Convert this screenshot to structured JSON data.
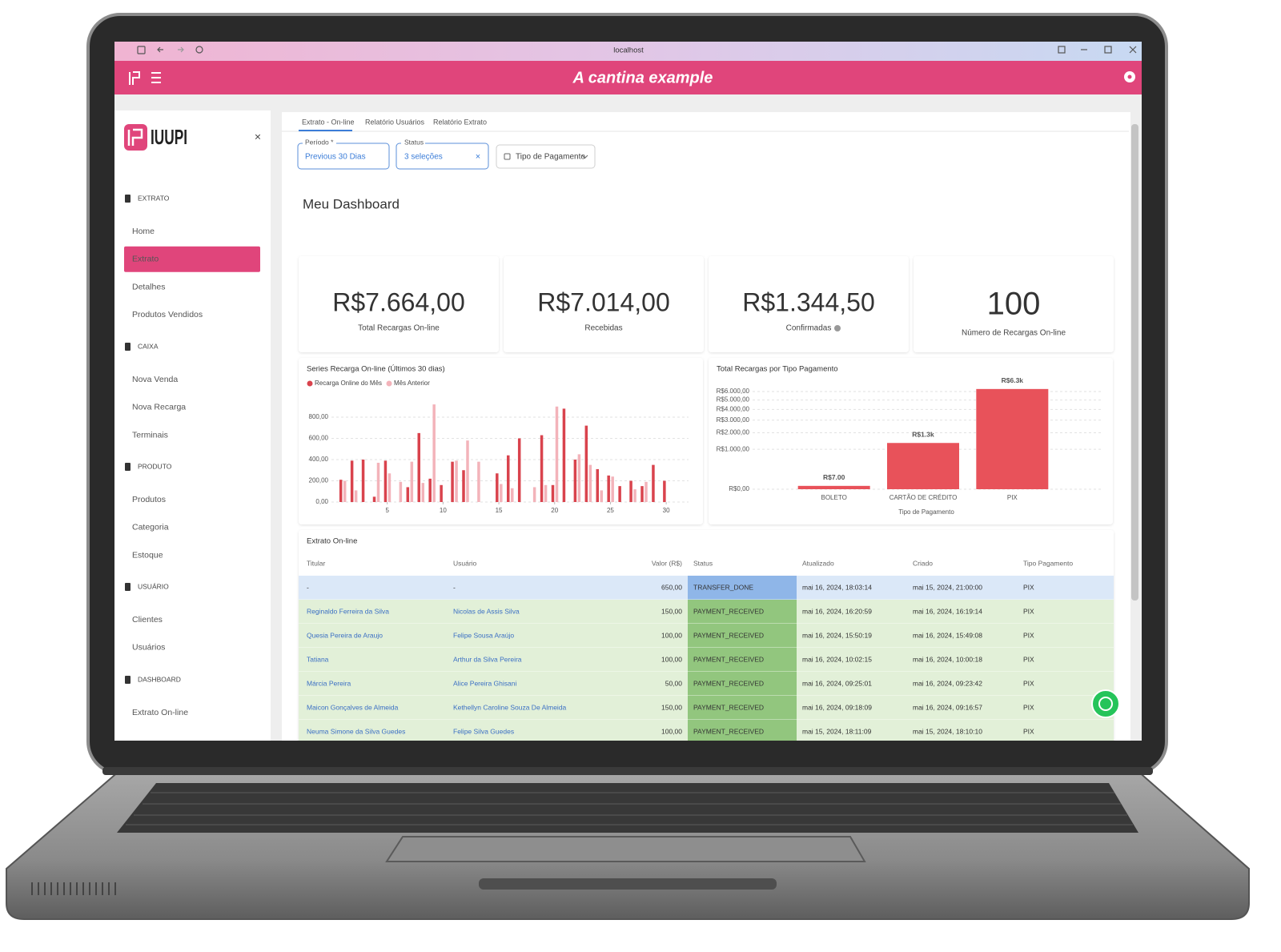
{
  "browser": {
    "address": "localhost"
  },
  "header": {
    "title": "A cantina example"
  },
  "sidebar": {
    "brand": "IUUPI",
    "close": "×",
    "sections": [
      {
        "title": "EXTRATO",
        "items": [
          "Home",
          "Extrato",
          "Detalhes",
          "Produtos Vendidos"
        ]
      },
      {
        "title": "CAIXA",
        "items": [
          "Nova Venda",
          "Nova Recarga",
          "Terminais"
        ]
      },
      {
        "title": "PRODUTO",
        "items": [
          "Produtos",
          "Categoria",
          "Estoque"
        ]
      },
      {
        "title": "USUÁRIO",
        "items": [
          "Clientes",
          "Usuários"
        ]
      },
      {
        "title": "DASHBOARD",
        "items": [
          "Extrato On-line"
        ]
      }
    ]
  },
  "tabs": [
    "Extrato - On-line",
    "Relatório Usuários",
    "Relatório Extrato"
  ],
  "filters": {
    "period_label": "Período *",
    "period_value": "Previous 30 Dias",
    "status_label": "Status",
    "status_value": "3 seleções",
    "status_clear": "×",
    "payment_type": "Tipo de Pagamento"
  },
  "dashboard_title": "Meu Dashboard",
  "cards": [
    {
      "value": "R$7.664,00",
      "label": "Total Recargas On-line"
    },
    {
      "value": "R$7.014,00",
      "label": "Recebidas"
    },
    {
      "value": "R$1.344,50",
      "label": "Confirmadas"
    },
    {
      "value": "100",
      "label": "Número de Recargas On-line"
    }
  ],
  "chart_data": [
    {
      "type": "bar",
      "title": "Series Recarga On-line (Últimos 30 dias)",
      "x": [
        1,
        2,
        3,
        4,
        5,
        6,
        7,
        8,
        9,
        10,
        11,
        12,
        13,
        14,
        15,
        16,
        17,
        18,
        19,
        20,
        21,
        22,
        23,
        24,
        25,
        26,
        27,
        28,
        29,
        30
      ],
      "xlim": [
        0,
        32
      ],
      "xticks": [
        5,
        10,
        15,
        20,
        25,
        30
      ],
      "ylim": [
        0,
        1000
      ],
      "yticks": [
        {
          "value": 0,
          "label": "0,00"
        },
        {
          "value": 200,
          "label": "200,00"
        },
        {
          "value": 400,
          "label": "400,00"
        },
        {
          "value": 600,
          "label": "600,00"
        },
        {
          "value": 800,
          "label": "800,00"
        }
      ],
      "grid": true,
      "legend": "top-left",
      "series": [
        {
          "name": "Recarga Online do Mês",
          "color": "#d9434d",
          "values": [
            210,
            390,
            400,
            50,
            390,
            0,
            140,
            650,
            220,
            160,
            380,
            300,
            0,
            0,
            270,
            440,
            600,
            0,
            630,
            160,
            880,
            400,
            720,
            310,
            250,
            150,
            200,
            150,
            350,
            200
          ]
        },
        {
          "name": "Mês Anterior",
          "color": "#f3b3ba",
          "values": [
            200,
            110,
            0,
            370,
            270,
            190,
            380,
            180,
            920,
            0,
            390,
            580,
            380,
            0,
            170,
            130,
            0,
            140,
            160,
            900,
            0,
            450,
            350,
            110,
            240,
            0,
            120,
            190,
            0,
            0
          ]
        }
      ]
    },
    {
      "type": "bar",
      "title": "Total Recargas por Tipo Pagamento",
      "xlabel": "Tipo de Pagamento",
      "categories": [
        "BOLETO",
        "CARTÃO DE CRÉDITO",
        "PIX"
      ],
      "values": [
        7,
        1344.5,
        6312.5
      ],
      "value_labels": [
        "R$7.00",
        "R$1.3k",
        "R$6.3k"
      ],
      "color": "#e8525a",
      "scale": "sqrt",
      "ylim": [
        0,
        6500
      ],
      "yticks": [
        {
          "value": 0,
          "label": "R$0,00"
        },
        {
          "value": 1000,
          "label": "R$1.000,00"
        },
        {
          "value": 2000,
          "label": "R$2.000,00"
        },
        {
          "value": 3000,
          "label": "R$3.000,00"
        },
        {
          "value": 4000,
          "label": "R$4.000,00"
        },
        {
          "value": 5000,
          "label": "R$5.000,00"
        },
        {
          "value": 6000,
          "label": "R$6.000,00"
        }
      ],
      "grid": true
    }
  ],
  "table": {
    "title": "Extrato On-line",
    "columns": [
      "Titular",
      "Usuário",
      "Valor (R$)",
      "Status",
      "Atualizado",
      "Criado",
      "Tipo Pagamento"
    ],
    "rows": [
      [
        "-",
        "-",
        "650,00",
        "TRANSFER_DONE",
        "mai 16, 2024, 18:03:14",
        "mai 15, 2024, 21:00:00",
        "PIX"
      ],
      [
        "Reginaldo Ferreira da Silva",
        "Nicolas de Assis Silva",
        "150,00",
        "PAYMENT_RECEIVED",
        "mai 16, 2024, 16:20:59",
        "mai 16, 2024, 16:19:14",
        "PIX"
      ],
      [
        "Quesia Pereira de Araujo",
        "Felipe Sousa Araújo",
        "100,00",
        "PAYMENT_RECEIVED",
        "mai 16, 2024, 15:50:19",
        "mai 16, 2024, 15:49:08",
        "PIX"
      ],
      [
        "Tatiana",
        "Arthur da Silva Pereira",
        "100,00",
        "PAYMENT_RECEIVED",
        "mai 16, 2024, 10:02:15",
        "mai 16, 2024, 10:00:18",
        "PIX"
      ],
      [
        "Márcia Pereira",
        "Alice Pereira Ghisani",
        "50,00",
        "PAYMENT_RECEIVED",
        "mai 16, 2024, 09:25:01",
        "mai 16, 2024, 09:23:42",
        "PIX"
      ],
      [
        "Maicon Gonçalves de Almeida",
        "Kethellyn Caroline Souza De Almeida",
        "150,00",
        "PAYMENT_RECEIVED",
        "mai 16, 2024, 09:18:09",
        "mai 16, 2024, 09:16:57",
        "PIX"
      ],
      [
        "Neuma Simone da Silva Guedes",
        "Felipe Silva Guedes",
        "100,00",
        "PAYMENT_RECEIVED",
        "mai 15, 2024, 18:11:09",
        "mai 15, 2024, 18:10:10",
        "PIX"
      ]
    ]
  }
}
